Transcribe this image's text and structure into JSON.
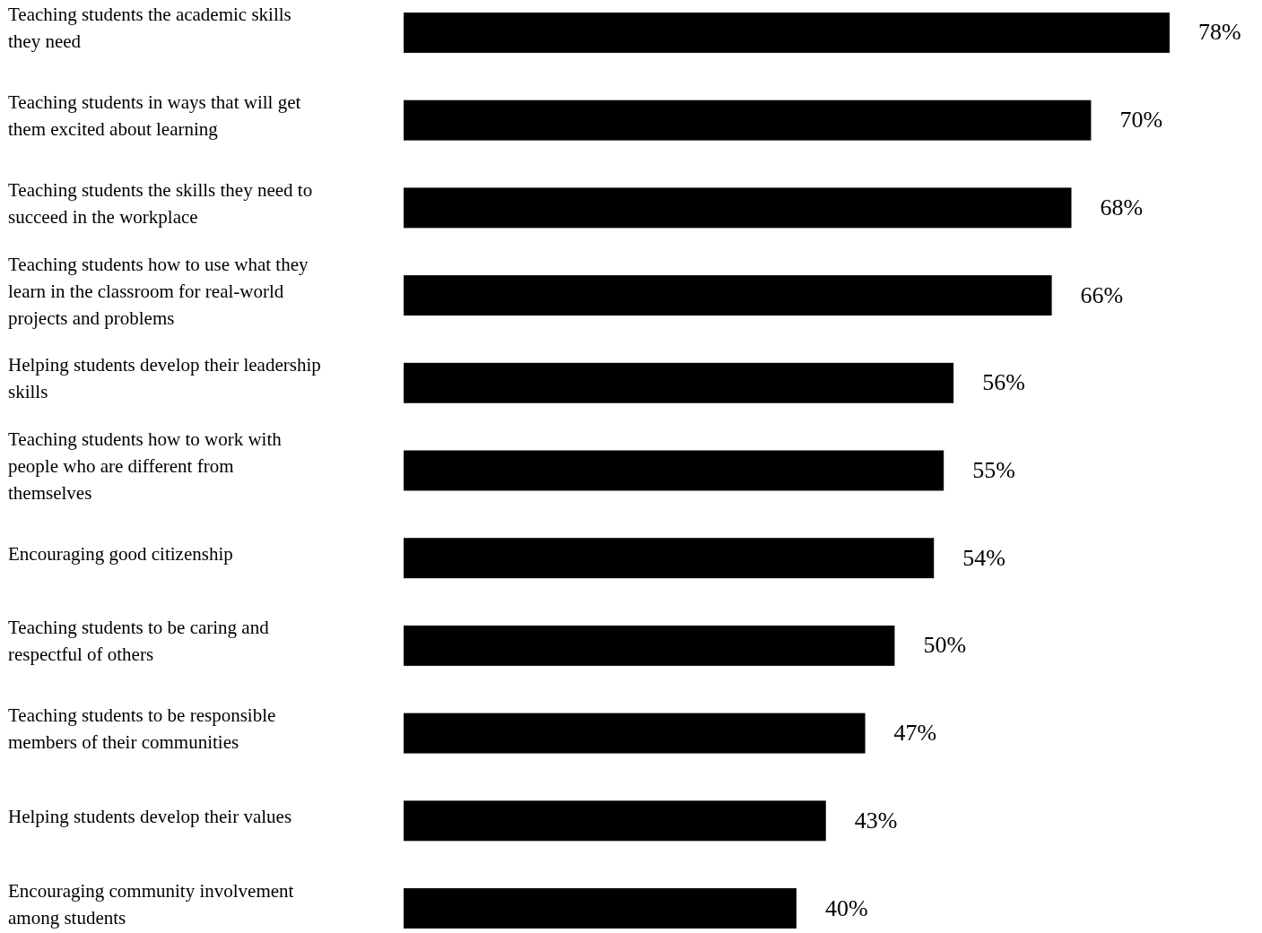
{
  "chart_data": {
    "type": "bar",
    "orientation": "horizontal",
    "categories": [
      "Teaching students the academic skills they need",
      "Teaching students in ways that will get them excited about learning",
      "Teaching students the skills they need to succeed in the workplace",
      "Teaching students how to use what they learn in the classroom for real-world projects and problems",
      "Helping students develop their leadership skills",
      "Teaching students how to work with people who are different from themselves",
      "Encouraging good citizenship",
      "Teaching students to be caring and respectful of others",
      "Teaching students to be responsible members of their communities",
      "Helping students develop their values",
      "Encouraging community involvement among students"
    ],
    "values": [
      78,
      70,
      68,
      66,
      56,
      55,
      54,
      50,
      47,
      43,
      40
    ],
    "value_labels": [
      "78%",
      "70%",
      "68%",
      "66%",
      "56%",
      "55%",
      "54%",
      "50%",
      "47%",
      "43%",
      "40%"
    ],
    "color": "#000000"
  }
}
